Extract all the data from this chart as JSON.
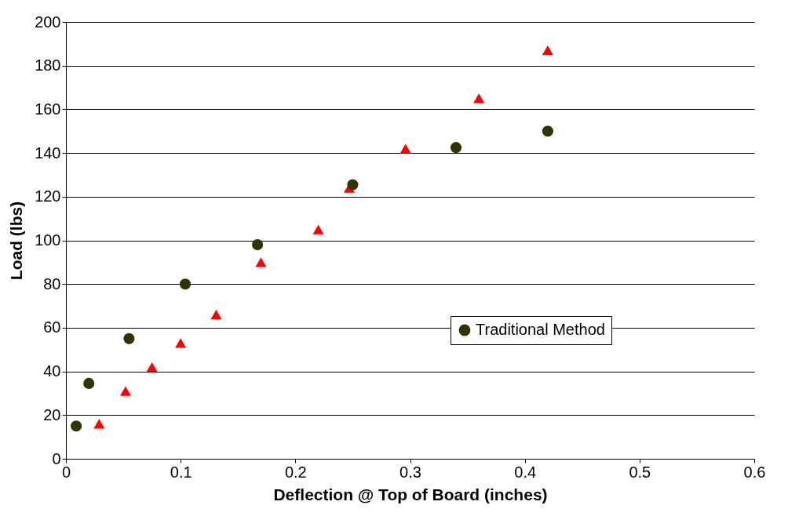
{
  "chart_data": {
    "type": "scatter",
    "xlabel": "Deflection @ Top of Board (inches)",
    "ylabel": "Load (lbs)",
    "xlim": [
      0,
      0.6
    ],
    "xticks": [
      0,
      0.1,
      0.2,
      0.3,
      0.4,
      0.5,
      0.6
    ],
    "ylim": [
      0,
      200
    ],
    "yticks": [
      0,
      20,
      40,
      60,
      80,
      100,
      120,
      140,
      160,
      180,
      200
    ],
    "grid": "y",
    "legend": "right",
    "series": [
      {
        "color": "#ff0000",
        "marker": "triangle",
        "x": [
          0.029,
          0.052,
          0.075,
          0.1,
          0.131,
          0.17,
          0.22,
          0.247,
          0.296,
          0.36,
          0.42
        ],
        "values": [
          16,
          31,
          42,
          53,
          66,
          90,
          105,
          124,
          142,
          165,
          187
        ]
      },
      {
        "name": "Traditional Method",
        "color": "#333300",
        "marker": "circle",
        "x": [
          0.009,
          0.02,
          0.055,
          0.104,
          0.167,
          0.25,
          0.34,
          0.42
        ],
        "values": [
          15,
          34.5,
          55,
          80,
          98,
          125.5,
          142.5,
          150
        ]
      }
    ]
  }
}
